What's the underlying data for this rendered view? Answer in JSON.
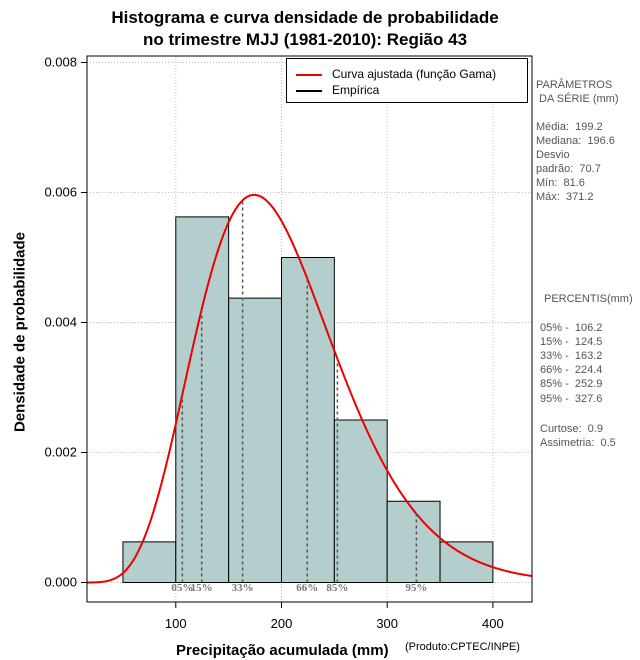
{
  "title": {
    "line1": "Histograma e curva densidade de probabilidade",
    "line2": "no trimestre MJJ (1981-2010): Região 43"
  },
  "legend": {
    "fitted": {
      "label": "Curva ajustada (função Gama)",
      "color": "#ee0000"
    },
    "empirical": {
      "label": "Empírica",
      "color": "#000000"
    }
  },
  "stats": {
    "params_title1": "PARÂMETROS",
    "params_title2": " DA SÉRIE (mm)",
    "mean": "Média:  199.2",
    "median": "Mediana:  196.6",
    "std_line1": "Desvio",
    "std_line2": "padrão:  70.7",
    "min": "Mín:  81.6",
    "max": "Máx:  371.2",
    "perc_title": "PERCENTIS(mm)",
    "p05": "05% -  106.2",
    "p15": "15% -  124.5",
    "p33": "33% -  163.2",
    "p66": "66% -  224.4",
    "p85": "85% -  252.9",
    "p95": "95% -  327.6",
    "kurtosis": "Curtose:  0.9",
    "skewness": "Assimetria:  0.5"
  },
  "axis_labels": {
    "x": "Precipitação acumulada (mm)",
    "y": "Densidade de probabilidade",
    "credit": "(Produto:CPTEC/INPE)"
  },
  "colors": {
    "bar_fill": "#b4cdcd",
    "curve": "#ee0000",
    "grid": "#c0c0c0",
    "percentile_line": "#555555"
  },
  "chart_data": {
    "type": "bar",
    "title": "Histograma e curva densidade de probabilidade no trimestre MJJ (1981-2010): Região 43",
    "xlabel": "Precipitação acumulada (mm)",
    "ylabel": "Densidade de probabilidade",
    "xlim": [
      16,
      437
    ],
    "ylim": [
      -0.0003,
      0.0081
    ],
    "x_ticks": [
      100,
      200,
      300,
      400
    ],
    "x_tick_labels": [
      "100",
      "200",
      "300",
      "400"
    ],
    "y_ticks": [
      0,
      0.002,
      0.004,
      0.006,
      0.008
    ],
    "y_tick_labels": [
      "0.000",
      "0.002",
      "0.004",
      "0.006",
      "0.008"
    ],
    "grid": true,
    "bins": [
      {
        "start": 50,
        "end": 100,
        "density": 0.000625
      },
      {
        "start": 100,
        "end": 150,
        "density": 0.005625
      },
      {
        "start": 150,
        "end": 200,
        "density": 0.004375
      },
      {
        "start": 200,
        "end": 250,
        "density": 0.005
      },
      {
        "start": 250,
        "end": 300,
        "density": 0.0025
      },
      {
        "start": 300,
        "end": 350,
        "density": 0.00125
      },
      {
        "start": 350,
        "end": 400,
        "density": 0.000625
      }
    ],
    "fitted_curve": {
      "name": "Curva ajustada (função Gama)",
      "distribution": "gamma",
      "mean": 199.2,
      "std": 70.7
    },
    "percentiles": [
      {
        "label": "05%",
        "value": 106.2
      },
      {
        "label": "15%",
        "value": 124.5
      },
      {
        "label": "33%",
        "value": 163.2
      },
      {
        "label": "66%",
        "value": 224.4
      },
      {
        "label": "85%",
        "value": 252.9
      },
      {
        "label": "95%",
        "value": 327.6
      }
    ]
  }
}
